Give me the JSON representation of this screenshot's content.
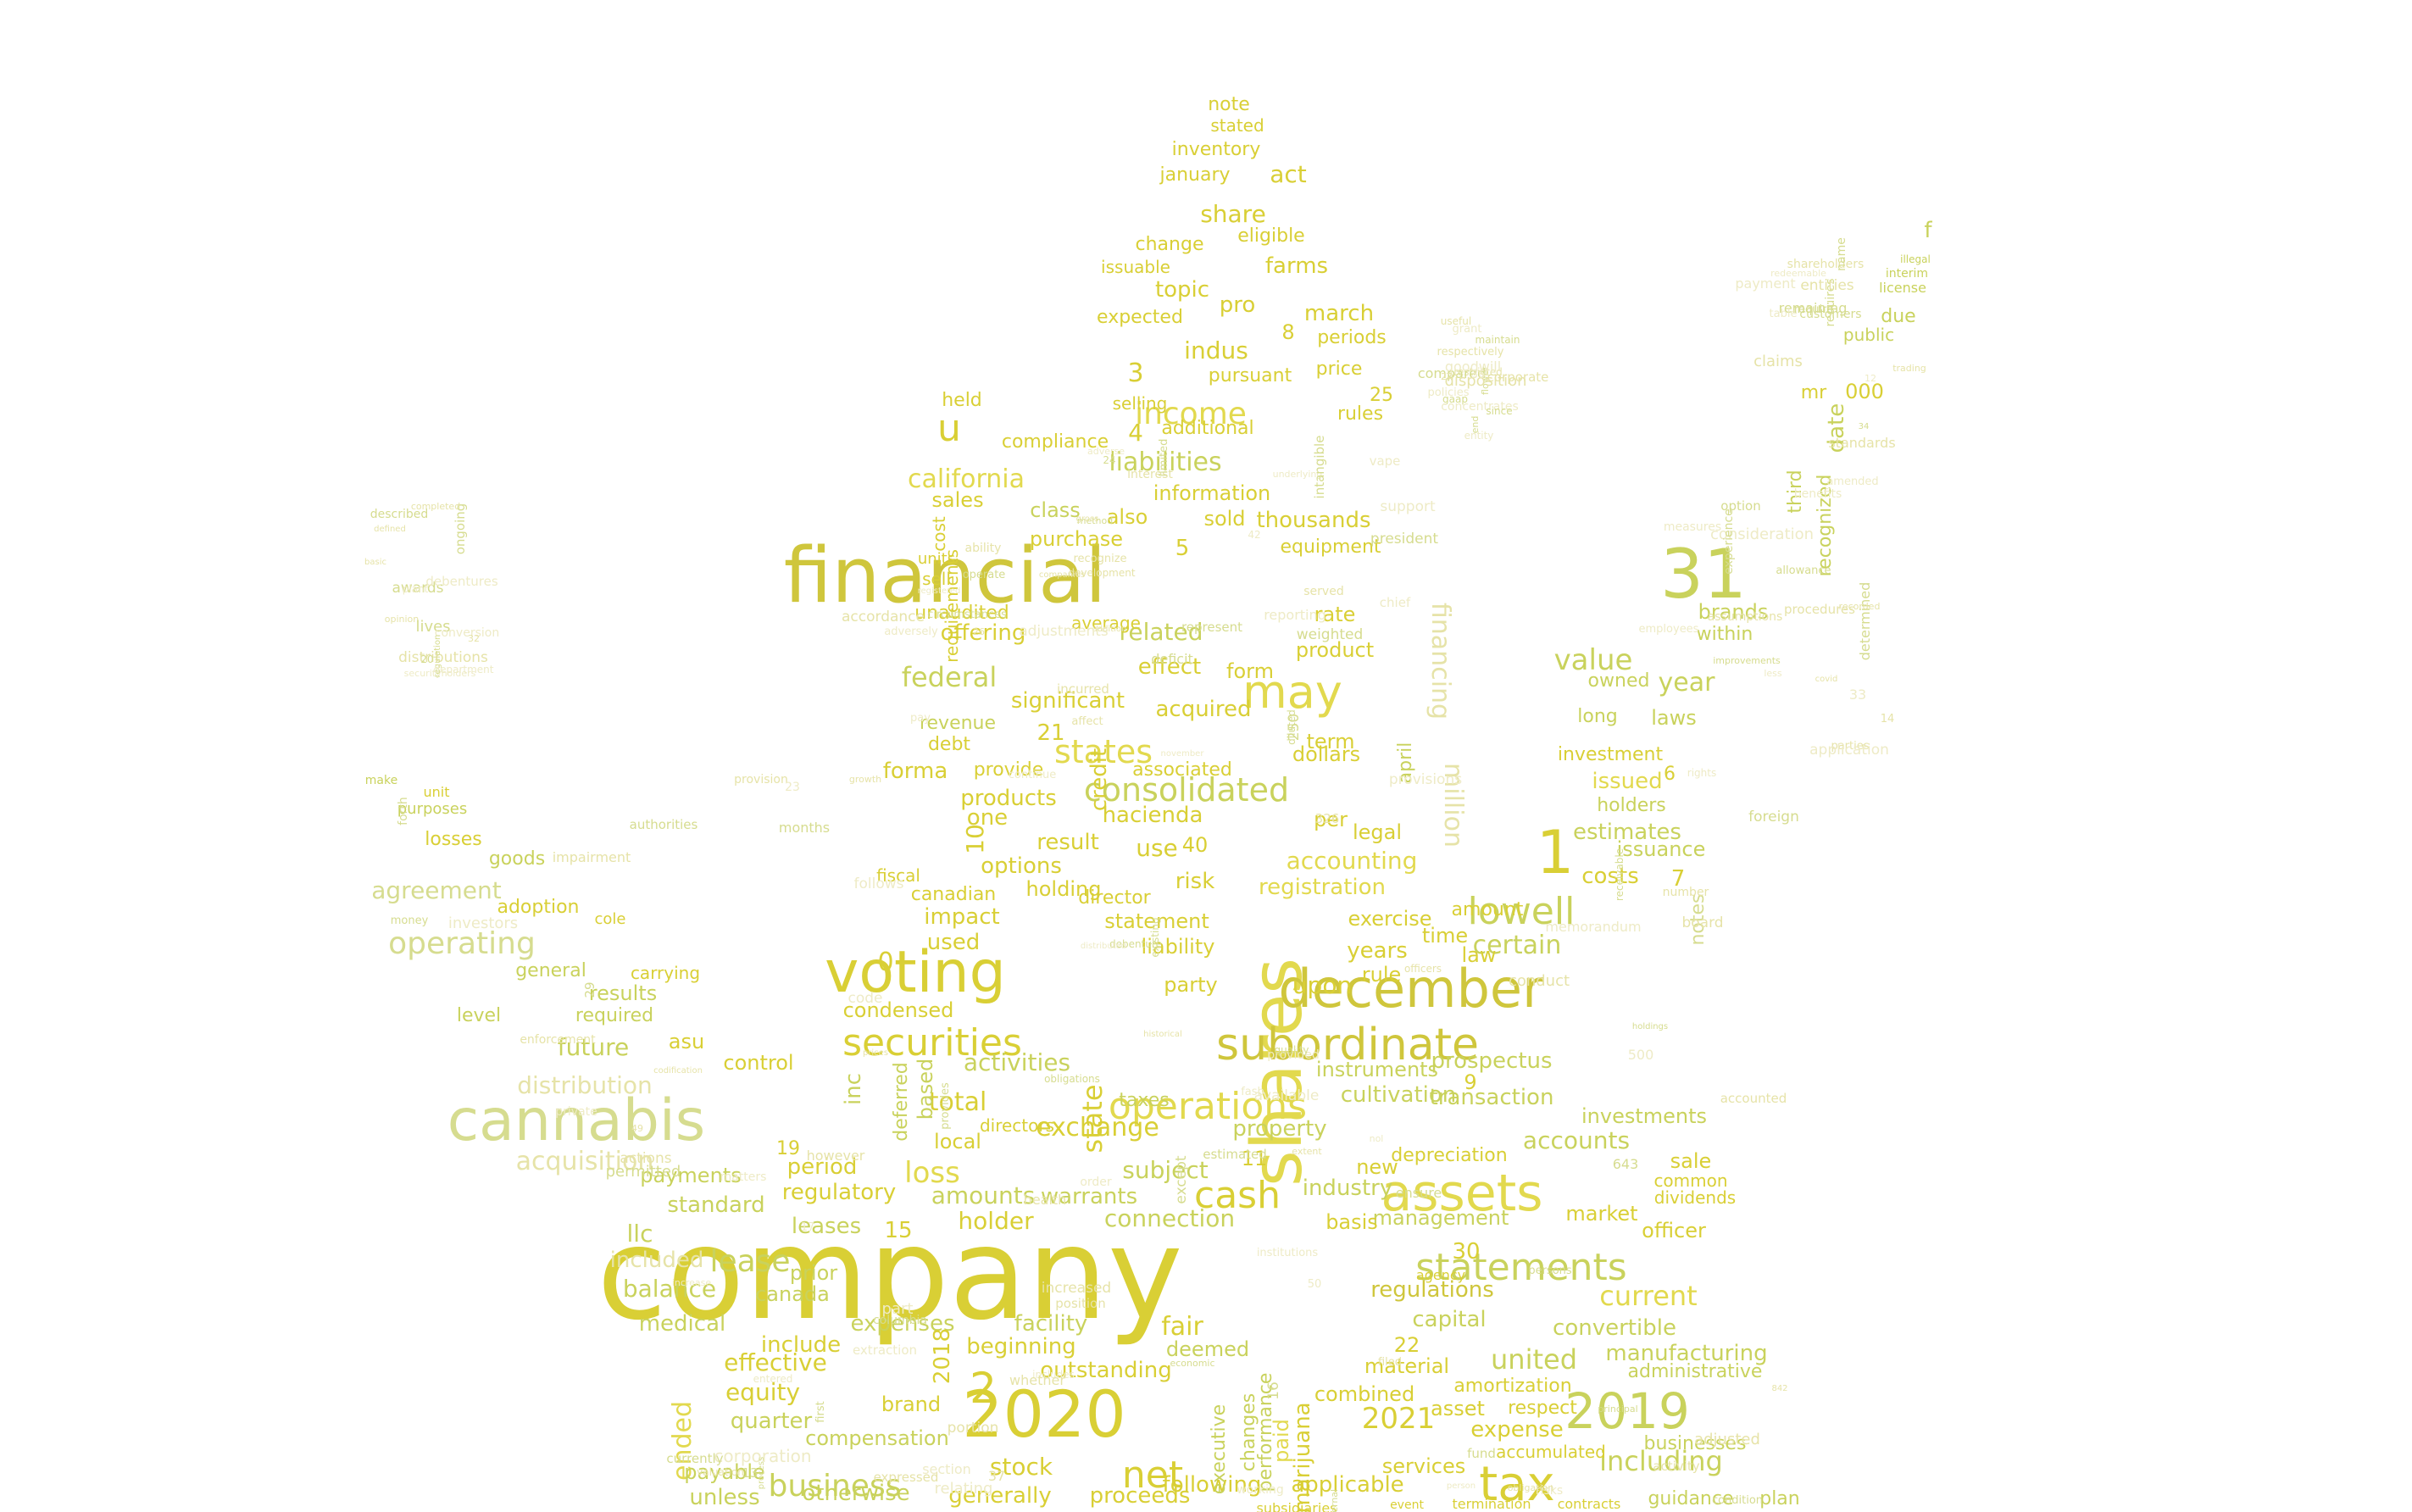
{
  "palette": [
    "#d9cf35",
    "#e2d94e",
    "#c9d25c",
    "#d6dc8f",
    "#e6e3a8",
    "#eeebc6",
    "#cfc63c"
  ],
  "word_cloud": {
    "words": [
      "company",
      "financial",
      "shares",
      "voting",
      "cannabis",
      "december",
      "assets",
      "2020",
      "subordinate",
      "31",
      "securities",
      "operations",
      "lowell",
      "statements",
      "tax",
      "2019",
      "may",
      "consolidated",
      "states",
      "net",
      "business",
      "cash",
      "lease",
      "operating",
      "income",
      "liabilities",
      "federal",
      "2",
      "u",
      "1",
      "loss",
      "agreement",
      "acquisition",
      "california",
      "value",
      "exchange",
      "related",
      "certain",
      "accounting",
      "estimates",
      "ended",
      "united",
      "current",
      "total",
      "registration",
      "activities",
      "prospectus",
      "balance",
      "medical",
      "expenses",
      "effective",
      "capital",
      "convertible",
      "including",
      "accounts",
      "investments",
      "management",
      "industry",
      "property",
      "cultivation",
      "transaction",
      "regulations",
      "manufacturing",
      "following",
      "applicable",
      "generally",
      "proceeds",
      "otherwise",
      "unless",
      "payable",
      "compensation",
      "equity",
      "quarter",
      "brand",
      "flower",
      "stock",
      "outstanding",
      "beginning",
      "facility",
      "fair",
      "deemed",
      "connection",
      "subject",
      "warrants",
      "amounts",
      "holder",
      "standard",
      "payments",
      "regulatory",
      "period",
      "leases",
      "prior",
      "canada",
      "include",
      "results",
      "required",
      "level",
      "future",
      "general",
      "adoption",
      "goods",
      "losses",
      "purposes",
      "unit",
      "make",
      "note",
      "stated",
      "inventory",
      "act",
      "january",
      "share",
      "eligible",
      "change",
      "topic",
      "farms",
      "march",
      "pro",
      "issuable",
      "expected",
      "indus",
      "periods",
      "price",
      "pursuant",
      "selling",
      "additional",
      "rules",
      "compliance",
      "held",
      "information",
      "class",
      "sales",
      "also",
      "sold",
      "thousands",
      "purchase",
      "equipment",
      "offering",
      "unaudited",
      "average",
      "rate",
      "effect",
      "form",
      "product",
      "interest",
      "significant",
      "acquired",
      "revenue",
      "debt",
      "provide",
      "associated",
      "dollars",
      "products",
      "hacienda",
      "result",
      "use",
      "options",
      "holding",
      "impact",
      "statement",
      "liability",
      "party",
      "upon",
      "years",
      "rule",
      "law",
      "time",
      "amount",
      "exercise",
      "instruments",
      "costs",
      "notes",
      "issuance",
      "holders",
      "issued",
      "investment",
      "long",
      "year",
      "laws",
      "brands",
      "within",
      "third",
      "date",
      "recognized",
      "000",
      "mr",
      "due",
      "public",
      "license",
      "interim",
      "illegal",
      "f",
      "owned",
      "control",
      "asu",
      "local",
      "directors",
      "taxes",
      "new",
      "sale",
      "common",
      "dividends",
      "officer",
      "market",
      "basis",
      "depreciation",
      "agency",
      "combined",
      "services",
      "material",
      "amortization",
      "asset",
      "expense",
      "accumulated",
      "respect",
      "businesses",
      "guidance",
      "plan",
      "administrative",
      "marijuana",
      "paid",
      "performance",
      "executive",
      "changes",
      "subsidiaries",
      "termination",
      "contracts",
      "event",
      "included",
      "llc",
      "carrying",
      "distribution",
      "investors",
      "cole",
      "condensed",
      "inc",
      "based",
      "deferred",
      "financing",
      "million",
      "april",
      "legal",
      "per",
      "term",
      "credit",
      "state",
      "corporation",
      "2018",
      "2021",
      "3",
      "4",
      "5",
      "6",
      "7",
      "8",
      "9",
      "10",
      "11",
      "15",
      "19",
      "21",
      "22",
      "25",
      "30",
      "40",
      "0",
      "one",
      "director",
      "risk",
      "used",
      "canadian",
      "fiscal",
      "forma",
      "sell",
      "units",
      "requirements",
      "cost",
      "chief",
      "months",
      "enforcement",
      "nol",
      "economic",
      "december",
      "adjusted",
      "consideration",
      "requires",
      "opinion",
      "entity",
      "method",
      "affect",
      "rights",
      "obligations",
      "health",
      "entered",
      "process",
      "procedures",
      "benefits",
      "awards",
      "restricted",
      "underlying",
      "weighted",
      "board",
      "provided",
      "provides",
      "position",
      "relating",
      "option",
      "claims",
      "debentures",
      "compared",
      "companies",
      "reporting",
      "receivable",
      "codification",
      "private",
      "principal",
      "valuation",
      "employees",
      "remaining",
      "defined",
      "policies",
      "limited",
      "served",
      "follows",
      "quality",
      "actions",
      "increase",
      "currently",
      "assumptions",
      "amended",
      "ongoing",
      "corporate",
      "support",
      "deficit",
      "number",
      "available",
      "permitted",
      "filed",
      "risks",
      "determined",
      "shareholders",
      "securityholders",
      "gaap",
      "gross",
      "november",
      "authorities",
      "officers",
      "institutions",
      "first",
      "activity",
      "measures",
      "customers",
      "basic",
      "concentrates",
      "operate",
      "addition",
      "provisions",
      "existing",
      "however",
      "extraction",
      "condition",
      "parties",
      "redeemable",
      "lives",
      "respectively",
      "vape",
      "diluted",
      "impairment",
      "fasb",
      "estimated",
      "increased",
      "working",
      "improvements",
      "entities",
      "conversion",
      "end",
      "development",
      "adversely",
      "foreign",
      "historical",
      "matters",
      "columbia",
      "expressed",
      "less",
      "name",
      "completed",
      "grant",
      "president",
      "accordance",
      "memorandum",
      "holdings",
      "extent",
      "includes",
      "internal",
      "covid",
      "table",
      "described",
      "disposition",
      "adverse",
      "circumstances",
      "growth",
      "code",
      "except",
      "whether",
      "section",
      "allowance",
      "trading",
      "plant",
      "since",
      "ability",
      "pay",
      "forth",
      "prices",
      "order",
      "persons",
      "obligation",
      "application",
      "require",
      "distributions",
      "goodwill",
      "intangible",
      "incurred",
      "continue",
      "debenture",
      "accounted",
      "part",
      "fund",
      "recorded",
      "payment",
      "regulation",
      "useful",
      "registered",
      "represent",
      "provision",
      "distributed",
      "ensure",
      "portion",
      "person",
      "experience",
      "standards",
      "department",
      "maintain",
      "recognize",
      "adjustments",
      "money",
      "conduct"
    ],
    "numbers": [
      "17",
      "16",
      "37",
      "33",
      "34",
      "32",
      "36",
      "24",
      "26",
      "23",
      "29",
      "49",
      "50",
      "13",
      "14",
      "12",
      "20",
      "27",
      "42",
      "250",
      "326",
      "500",
      "643",
      "842"
    ]
  }
}
